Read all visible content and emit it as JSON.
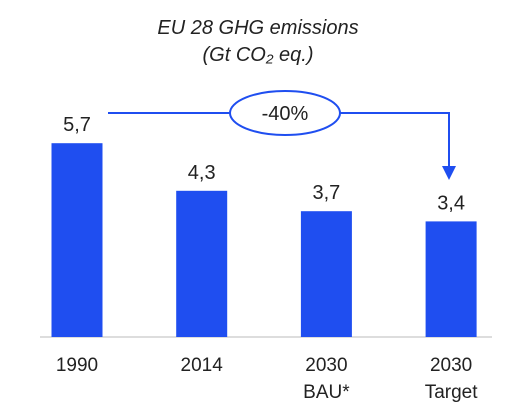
{
  "chart_data": {
    "type": "bar",
    "title": "EU 28 GHG emissions",
    "subtitle": "(Gt CO₂ eq.)",
    "categories": [
      "1990",
      "2014",
      "2030\nBAU*",
      "2030\nTarget"
    ],
    "values": [
      5.7,
      4.3,
      3.7,
      3.4
    ],
    "value_labels": [
      "5,7",
      "4,3",
      "3,7",
      "3,4"
    ],
    "color": "#1f4ef0",
    "annotation": "-40%"
  }
}
